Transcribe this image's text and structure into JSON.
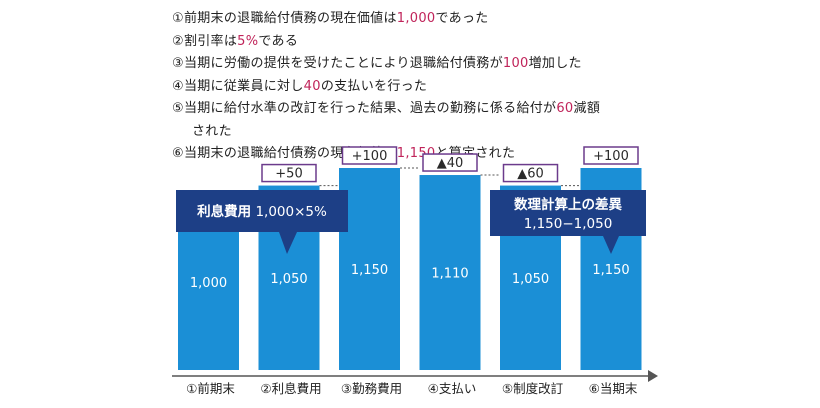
{
  "notes": [
    {
      "parts": [
        "①前期末の退職給付債務の現在価値は",
        "1,000",
        "であった"
      ]
    },
    {
      "parts": [
        "②割引率は",
        "5%",
        "である"
      ]
    },
    {
      "parts": [
        "③当期に労働の提供を受けたことにより退職給付債務が",
        "100",
        "増加した"
      ]
    },
    {
      "parts": [
        "④当期に従業員に対し",
        "40",
        "の支払いを行った"
      ]
    },
    {
      "parts": [
        "⑤当期に給付水準の改訂を行った結果、過去の勤務に係る給付が",
        "60",
        "減額"
      ],
      "continuation": "された"
    },
    {
      "parts": [
        "⑥当期末の退職給付債務の現在価値は",
        "1,150",
        "と算定された"
      ]
    }
  ],
  "colors": {
    "bar": "#1b8fd6",
    "highlight": "#c0245a",
    "callout": "#1d3f86",
    "delta_border": "#6b3b8c"
  },
  "chart_data": {
    "type": "bar",
    "categories": [
      "①前期末",
      "②利息費用",
      "③勤務費用",
      "④支払い",
      "⑤制度改訂",
      "⑥当期末"
    ],
    "values": [
      1000,
      1050,
      1150,
      1110,
      1050,
      1150
    ],
    "value_labels": [
      "1,000",
      "1,050",
      "1,150",
      "1,110",
      "1,050",
      "1,150"
    ],
    "deltas": [
      null,
      "+50",
      "+100",
      "▲40",
      "▲60",
      "+100"
    ],
    "ylim": [
      0,
      1200
    ],
    "callouts": [
      {
        "lines": [
          [
            "利息費用",
            " 1,000×5%"
          ]
        ],
        "points_to": "②利息費用"
      },
      {
        "lines": [
          [
            "数理計算上の差異"
          ],
          [
            "1,150−1,050"
          ]
        ],
        "points_to": "⑥当期末"
      }
    ]
  }
}
